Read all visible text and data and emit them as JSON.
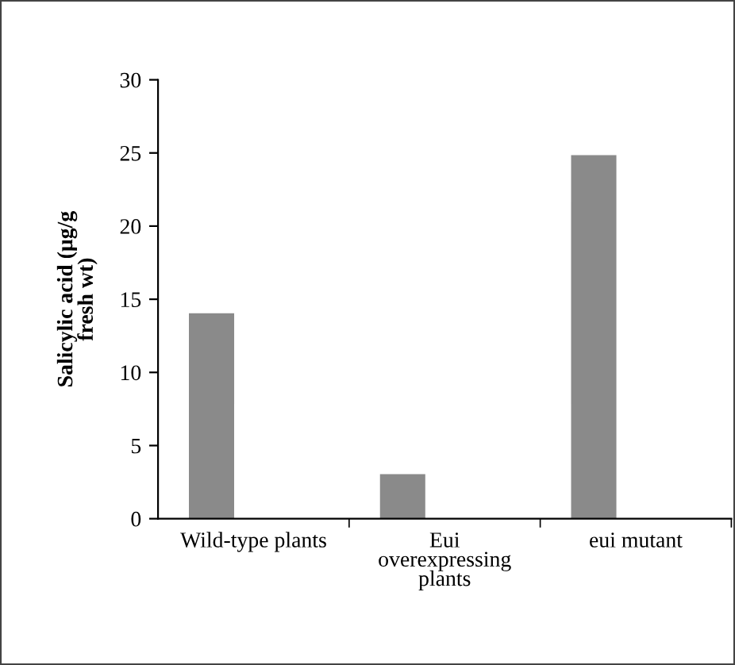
{
  "chart_data": {
    "type": "bar",
    "ylabel": "Salicylic acid (μg/g\nfresh wt)",
    "categories": [
      "Wild-type plants",
      "Eui\noverexpressing\nplants",
      "eui mutant"
    ],
    "values": [
      14,
      3,
      24.8
    ],
    "color": "#8a8a8a",
    "ylim": [
      0,
      30
    ],
    "yticks": [
      0,
      5,
      10,
      15,
      20,
      25,
      30
    ],
    "grid": false,
    "legend": false
  }
}
